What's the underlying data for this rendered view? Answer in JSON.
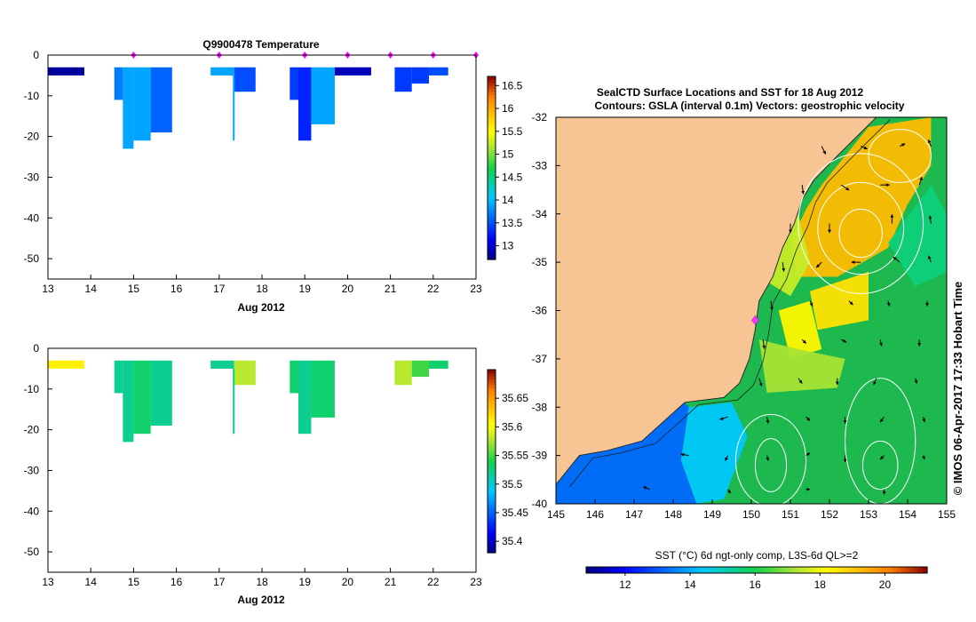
{
  "chart_data": [
    {
      "type": "heatmap",
      "title": "Q9900478  Temperature",
      "xlabel": "Aug 2012",
      "ylabel": "",
      "xlim": [
        13,
        23
      ],
      "ylim": [
        -55,
        0
      ],
      "x_ticks": [
        "13",
        "14",
        "15",
        "16",
        "17",
        "18",
        "19",
        "20",
        "21",
        "22",
        "23"
      ],
      "y_ticks": [
        "0",
        "-10",
        "-20",
        "-30",
        "-40",
        "-50"
      ],
      "profile_markers_day": [
        15,
        17,
        19,
        20,
        21,
        22,
        23
      ],
      "colorbar_ticks": [
        "16.5",
        "16",
        "15.5",
        "15",
        "14.5",
        "14",
        "13.5",
        "13"
      ],
      "colorbar_range": [
        12.7,
        16.7
      ],
      "cells": [
        {
          "x0": 13.0,
          "x1": 13.85,
          "d0": -3,
          "d1": -5,
          "v": 12.8
        },
        {
          "x0": 14.55,
          "x1": 14.75,
          "d0": -3,
          "d1": -11,
          "v": 13.7
        },
        {
          "x0": 14.75,
          "x1": 15.0,
          "d0": -3,
          "d1": -23,
          "v": 13.9
        },
        {
          "x0": 15.0,
          "x1": 15.4,
          "d0": -3,
          "d1": -21,
          "v": 13.9
        },
        {
          "x0": 15.4,
          "x1": 15.9,
          "d0": -3,
          "d1": -19,
          "v": 13.6
        },
        {
          "x0": 16.8,
          "x1": 17.35,
          "d0": -3,
          "d1": -5,
          "v": 13.9
        },
        {
          "x0": 17.35,
          "x1": 17.85,
          "d0": -3,
          "d1": -9,
          "v": 13.5
        },
        {
          "x0": 17.32,
          "x1": 17.36,
          "d0": -5,
          "d1": -21,
          "v": 13.9
        },
        {
          "x0": 18.65,
          "x1": 18.85,
          "d0": -3,
          "d1": -11,
          "v": 13.4
        },
        {
          "x0": 18.85,
          "x1": 19.15,
          "d0": -3,
          "d1": -21,
          "v": 13.3
        },
        {
          "x0": 19.15,
          "x1": 19.7,
          "d0": -3,
          "d1": -17,
          "v": 13.9
        },
        {
          "x0": 19.7,
          "x1": 20.55,
          "d0": -3,
          "d1": -5,
          "v": 12.9
        },
        {
          "x0": 21.1,
          "x1": 21.5,
          "d0": -3,
          "d1": -9,
          "v": 13.4
        },
        {
          "x0": 21.5,
          "x1": 21.9,
          "d0": -3,
          "d1": -7,
          "v": 13.4
        },
        {
          "x0": 21.9,
          "x1": 22.35,
          "d0": -3,
          "d1": -5,
          "v": 13.5
        }
      ]
    },
    {
      "type": "heatmap",
      "title": "",
      "xlabel": "Aug 2012",
      "ylabel": "",
      "xlim": [
        13,
        23
      ],
      "ylim": [
        -55,
        0
      ],
      "x_ticks": [
        "13",
        "14",
        "15",
        "16",
        "17",
        "18",
        "19",
        "20",
        "21",
        "22",
        "23"
      ],
      "y_ticks": [
        "0",
        "-10",
        "-20",
        "-30",
        "-40",
        "-50"
      ],
      "colorbar_ticks": [
        "35.65",
        "35.6",
        "35.55",
        "35.5",
        "35.45",
        "35.4"
      ],
      "colorbar_range": [
        35.38,
        35.7
      ],
      "cells": [
        {
          "x0": 13.0,
          "x1": 13.85,
          "d0": -3,
          "d1": -5,
          "v": 35.61
        },
        {
          "x0": 14.55,
          "x1": 14.75,
          "d0": -3,
          "d1": -11,
          "v": 35.52
        },
        {
          "x0": 14.75,
          "x1": 15.0,
          "d0": -3,
          "d1": -23,
          "v": 35.52
        },
        {
          "x0": 15.0,
          "x1": 15.4,
          "d0": -3,
          "d1": -21,
          "v": 35.53
        },
        {
          "x0": 15.4,
          "x1": 15.9,
          "d0": -3,
          "d1": -19,
          "v": 35.52
        },
        {
          "x0": 16.8,
          "x1": 17.35,
          "d0": -3,
          "d1": -5,
          "v": 35.52
        },
        {
          "x0": 17.35,
          "x1": 17.85,
          "d0": -3,
          "d1": -9,
          "v": 35.58
        },
        {
          "x0": 17.32,
          "x1": 17.36,
          "d0": -5,
          "d1": -21,
          "v": 35.52
        },
        {
          "x0": 18.65,
          "x1": 18.85,
          "d0": -3,
          "d1": -11,
          "v": 35.53
        },
        {
          "x0": 18.85,
          "x1": 19.15,
          "d0": -3,
          "d1": -21,
          "v": 35.52
        },
        {
          "x0": 19.15,
          "x1": 19.7,
          "d0": -3,
          "d1": -17,
          "v": 35.53
        },
        {
          "x0": 21.1,
          "x1": 21.5,
          "d0": -3,
          "d1": -9,
          "v": 35.58
        },
        {
          "x0": 21.5,
          "x1": 21.9,
          "d0": -3,
          "d1": -7,
          "v": 35.55
        },
        {
          "x0": 21.9,
          "x1": 22.35,
          "d0": -3,
          "d1": -5,
          "v": 35.53
        }
      ]
    },
    {
      "type": "heatmap",
      "title": "SealCTD Surface Locations and SST for 18 Aug 2012",
      "subtitle": "Contours: GSLA (interval 0.1m) Vectors: geostrophic velocity",
      "xlabel": "",
      "ylabel": "",
      "xlim": [
        145,
        155
      ],
      "ylim": [
        -40,
        -32
      ],
      "x_ticks": [
        "145",
        "146",
        "147",
        "148",
        "149",
        "150",
        "151",
        "152",
        "153",
        "154",
        "155"
      ],
      "y_ticks": [
        "-32",
        "-33",
        "-34",
        "-35",
        "-36",
        "-37",
        "-38",
        "-39",
        "-40"
      ],
      "colorbar_label": "SST (°C) 6d ngt-only comp, L3S-6d QL>=2",
      "colorbar_ticks": [
        "12",
        "14",
        "16",
        "18",
        "20"
      ],
      "colorbar_range": [
        10.8,
        21.3
      ],
      "side_label": "© IMOS 06-Apr-2017 17:33 Hobart Time",
      "surface_location": {
        "lon": 150.1,
        "lat": -36.2
      },
      "coast": [
        [
          145,
          -39.6
        ],
        [
          145.6,
          -39.0
        ],
        [
          146.3,
          -38.9
        ],
        [
          147.2,
          -38.7
        ],
        [
          148.3,
          -37.9
        ],
        [
          149.3,
          -37.8
        ],
        [
          149.7,
          -37.5
        ],
        [
          149.95,
          -37.0
        ],
        [
          150.1,
          -36.4
        ],
        [
          150.2,
          -35.8
        ],
        [
          150.55,
          -35.3
        ],
        [
          150.8,
          -34.7
        ],
        [
          151.1,
          -34.2
        ],
        [
          151.3,
          -33.7
        ],
        [
          151.6,
          -33.3
        ],
        [
          152.2,
          -32.8
        ],
        [
          152.7,
          -32.4
        ],
        [
          153.2,
          -32.0
        ]
      ],
      "sst_regions": [
        {
          "v": 19.2,
          "poly": [
            [
              151.0,
              -34.6
            ],
            [
              151.4,
              -33.9
            ],
            [
              151.8,
              -33.4
            ],
            [
              152.4,
              -32.8
            ],
            [
              153.0,
              -32.2
            ],
            [
              154.6,
              -32.0
            ],
            [
              154.6,
              -33.0
            ],
            [
              154.0,
              -33.8
            ],
            [
              153.5,
              -34.7
            ],
            [
              152.2,
              -35.3
            ],
            [
              151.2,
              -35.3
            ]
          ]
        },
        {
          "v": 17.5,
          "poly": [
            [
              150.4,
              -35.4
            ],
            [
              150.8,
              -34.7
            ],
            [
              151.2,
              -34.0
            ],
            [
              151.5,
              -35.0
            ],
            [
              151.0,
              -35.7
            ]
          ]
        },
        {
          "v": 18.6,
          "poly": [
            [
              151.5,
              -35.6
            ],
            [
              153.0,
              -35.2
            ],
            [
              153.0,
              -36.2
            ],
            [
              151.7,
              -36.4
            ]
          ]
        },
        {
          "v": 18.3,
          "poly": [
            [
              150.7,
              -36.0
            ],
            [
              151.5,
              -35.8
            ],
            [
              151.8,
              -36.8
            ],
            [
              151.0,
              -37.0
            ]
          ]
        },
        {
          "v": 15.6,
          "poly": [
            [
              153.5,
              -34.6
            ],
            [
              154.6,
              -33.4
            ],
            [
              155.0,
              -34.0
            ],
            [
              155.0,
              -35.2
            ],
            [
              154.2,
              -35.5
            ]
          ]
        },
        {
          "v": 17.2,
          "poly": [
            [
              150.2,
              -36.6
            ],
            [
              151.2,
              -36.8
            ],
            [
              152.4,
              -37.0
            ],
            [
              152.2,
              -37.6
            ],
            [
              150.4,
              -37.7
            ]
          ]
        },
        {
          "v": 14.4,
          "poly": [
            [
              148.4,
              -38.0
            ],
            [
              149.5,
              -37.9
            ],
            [
              149.9,
              -38.6
            ],
            [
              149.3,
              -39.9
            ],
            [
              148.6,
              -40.0
            ],
            [
              148.2,
              -39.1
            ]
          ]
        },
        {
          "v": 13.2,
          "poly": [
            [
              145,
              -40
            ],
            [
              145,
              -39.6
            ],
            [
              145.6,
              -39.0
            ],
            [
              146.3,
              -38.9
            ],
            [
              147.2,
              -38.7
            ],
            [
              148.3,
              -37.9
            ],
            [
              148.4,
              -38.0
            ],
            [
              148.2,
              -39.1
            ],
            [
              148.6,
              -40.0
            ]
          ]
        }
      ],
      "gsla_contours": [
        {
          "cx": 152.8,
          "cy": -34.4,
          "rx": 0.55,
          "ry": 0.5
        },
        {
          "cx": 152.8,
          "cy": -34.3,
          "rx": 1.1,
          "ry": 0.95
        },
        {
          "cx": 152.8,
          "cy": -34.2,
          "rx": 1.6,
          "ry": 1.45
        },
        {
          "cx": 153.8,
          "cy": -32.8,
          "rx": 0.8,
          "ry": 0.55
        },
        {
          "cx": 150.5,
          "cy": -39.2,
          "rx": 0.4,
          "ry": 0.55
        },
        {
          "cx": 150.5,
          "cy": -39.1,
          "rx": 0.9,
          "ry": 0.95
        },
        {
          "cx": 153.3,
          "cy": -39.2,
          "rx": 0.45,
          "ry": 0.5
        },
        {
          "cx": 153.3,
          "cy": -38.7,
          "rx": 0.9,
          "ry": 1.3
        }
      ],
      "velocity_vectors": [
        {
          "lon": 151.8,
          "lat": -32.6,
          "u": 0.15,
          "v": -0.3
        },
        {
          "lon": 152.8,
          "lat": -32.6,
          "u": 0.25,
          "v": -0.1
        },
        {
          "lon": 153.8,
          "lat": -32.6,
          "u": 0.2,
          "v": 0.1
        },
        {
          "lon": 154.6,
          "lat": -32.6,
          "u": -0.1,
          "v": 0.25
        },
        {
          "lon": 151.3,
          "lat": -33.4,
          "u": 0.05,
          "v": -0.35
        },
        {
          "lon": 152.3,
          "lat": -33.4,
          "u": 0.3,
          "v": -0.2
        },
        {
          "lon": 153.3,
          "lat": -33.4,
          "u": 0.35,
          "v": 0.0
        },
        {
          "lon": 154.3,
          "lat": -33.4,
          "u": 0.1,
          "v": 0.3
        },
        {
          "lon": 151.0,
          "lat": -34.2,
          "u": 0.0,
          "v": -0.35
        },
        {
          "lon": 152.0,
          "lat": -34.2,
          "u": 0.0,
          "v": -0.35
        },
        {
          "lon": 153.6,
          "lat": -34.2,
          "u": 0.0,
          "v": 0.35
        },
        {
          "lon": 154.6,
          "lat": -34.2,
          "u": -0.05,
          "v": 0.3
        },
        {
          "lon": 150.8,
          "lat": -35.0,
          "u": 0.05,
          "v": -0.35
        },
        {
          "lon": 151.8,
          "lat": -35.0,
          "u": -0.2,
          "v": -0.2
        },
        {
          "lon": 152.8,
          "lat": -35.0,
          "u": -0.35,
          "v": 0.0
        },
        {
          "lon": 153.8,
          "lat": -35.0,
          "u": -0.25,
          "v": 0.2
        },
        {
          "lon": 154.6,
          "lat": -35.0,
          "u": -0.1,
          "v": 0.25
        },
        {
          "lon": 150.5,
          "lat": -35.8,
          "u": 0.05,
          "v": -0.35
        },
        {
          "lon": 151.5,
          "lat": -35.8,
          "u": 0.1,
          "v": -0.2
        },
        {
          "lon": 152.5,
          "lat": -35.8,
          "u": 0.15,
          "v": -0.15
        },
        {
          "lon": 153.5,
          "lat": -35.8,
          "u": 0.05,
          "v": -0.2
        },
        {
          "lon": 154.5,
          "lat": -35.8,
          "u": 0.0,
          "v": -0.2
        },
        {
          "lon": 150.3,
          "lat": -36.6,
          "u": 0.05,
          "v": -0.35
        },
        {
          "lon": 151.3,
          "lat": -36.6,
          "u": 0.15,
          "v": -0.15
        },
        {
          "lon": 152.3,
          "lat": -36.6,
          "u": 0.2,
          "v": -0.1
        },
        {
          "lon": 153.3,
          "lat": -36.6,
          "u": 0.05,
          "v": -0.25
        },
        {
          "lon": 154.3,
          "lat": -36.6,
          "u": 0.0,
          "v": -0.25
        },
        {
          "lon": 150.2,
          "lat": -37.4,
          "u": 0.1,
          "v": -0.3
        },
        {
          "lon": 151.2,
          "lat": -37.4,
          "u": 0.15,
          "v": -0.2
        },
        {
          "lon": 152.2,
          "lat": -37.4,
          "u": 0.0,
          "v": -0.25
        },
        {
          "lon": 153.2,
          "lat": -37.4,
          "u": -0.1,
          "v": -0.25
        },
        {
          "lon": 154.2,
          "lat": -37.4,
          "u": 0.05,
          "v": -0.2
        },
        {
          "lon": 149.4,
          "lat": -38.2,
          "u": -0.3,
          "v": -0.1
        },
        {
          "lon": 150.4,
          "lat": -38.2,
          "u": 0.05,
          "v": -0.25
        },
        {
          "lon": 151.4,
          "lat": -38.2,
          "u": 0.15,
          "v": -0.15
        },
        {
          "lon": 152.4,
          "lat": -38.2,
          "u": 0.0,
          "v": -0.25
        },
        {
          "lon": 153.4,
          "lat": -38.2,
          "u": -0.15,
          "v": -0.2
        },
        {
          "lon": 154.4,
          "lat": -38.2,
          "u": 0.05,
          "v": -0.2
        },
        {
          "lon": 148.4,
          "lat": -39.0,
          "u": -0.3,
          "v": 0.05
        },
        {
          "lon": 149.4,
          "lat": -39.0,
          "u": -0.1,
          "v": -0.2
        },
        {
          "lon": 150.4,
          "lat": -39.0,
          "u": 0.05,
          "v": -0.2
        },
        {
          "lon": 151.4,
          "lat": -39.0,
          "u": 0.15,
          "v": 0.1
        },
        {
          "lon": 152.4,
          "lat": -39.0,
          "u": 0.0,
          "v": -0.25
        },
        {
          "lon": 153.4,
          "lat": -39.0,
          "u": -0.15,
          "v": -0.15
        },
        {
          "lon": 154.4,
          "lat": -39.0,
          "u": 0.05,
          "v": -0.15
        },
        {
          "lon": 147.4,
          "lat": -39.7,
          "u": -0.25,
          "v": 0.1
        },
        {
          "lon": 149.4,
          "lat": -39.7,
          "u": 0.1,
          "v": -0.15
        },
        {
          "lon": 151.4,
          "lat": -39.7,
          "u": 0.15,
          "v": 0.0
        },
        {
          "lon": 153.4,
          "lat": -39.7,
          "u": 0.0,
          "v": -0.2
        }
      ]
    }
  ]
}
